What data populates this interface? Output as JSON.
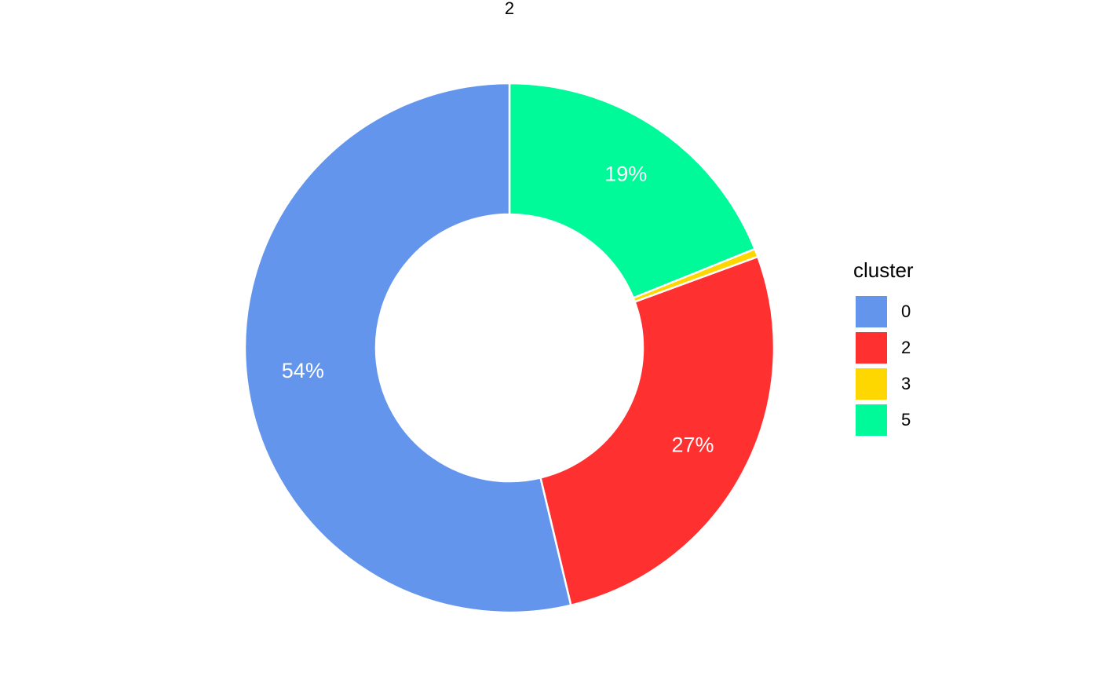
{
  "chart_data": {
    "type": "pie",
    "title": "2",
    "legend_title": "cluster",
    "categories": [
      "0",
      "2",
      "3",
      "5"
    ],
    "values": [
      54,
      27,
      0.5,
      19
    ],
    "value_labels": [
      "54%",
      "27%",
      null,
      "19%"
    ],
    "colors": [
      "#6495ED",
      "#FF3030",
      "#FFD700",
      "#00FA9A"
    ]
  }
}
